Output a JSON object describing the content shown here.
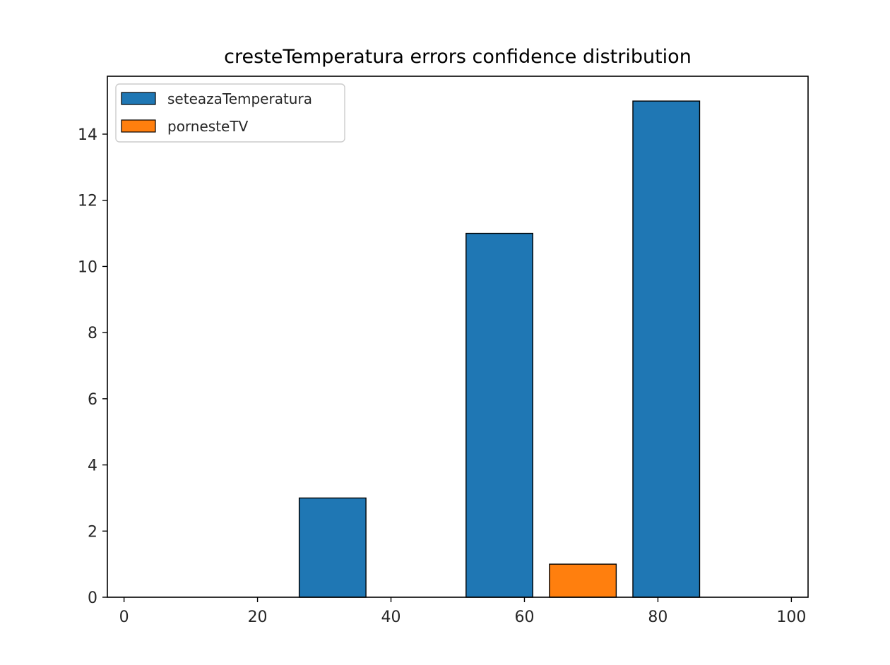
{
  "chart_data": {
    "type": "bar",
    "title": "cresteTemperatura errors confidence distribution",
    "xlabel": "",
    "ylabel": "",
    "xlim": [
      -2.5,
      102.5
    ],
    "ylim": [
      0,
      15.75
    ],
    "xticks": [
      0,
      20,
      40,
      60,
      80,
      100
    ],
    "yticks": [
      0,
      2,
      4,
      6,
      8,
      10,
      12,
      14
    ],
    "bins": [
      [
        0,
        25
      ],
      [
        25,
        50
      ],
      [
        50,
        75
      ],
      [
        75,
        100
      ]
    ],
    "series": [
      {
        "name": "seteazaTemperatura",
        "color": "#1f77b4",
        "values": [
          0,
          3,
          11,
          15
        ]
      },
      {
        "name": "pornesteTV",
        "color": "#ff7f0e",
        "values": [
          0,
          0,
          1,
          0
        ]
      }
    ],
    "legend": {
      "placement": "top-left"
    },
    "grid": false
  }
}
